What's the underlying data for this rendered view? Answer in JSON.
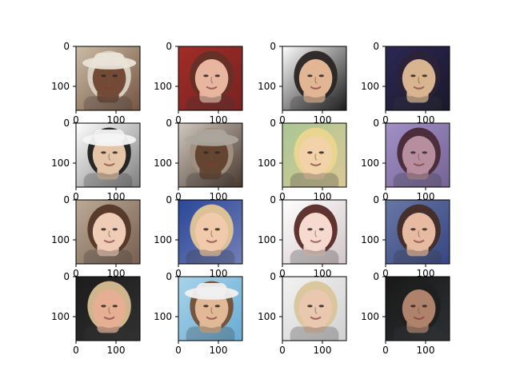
{
  "figure": {
    "rows": 4,
    "cols": 4,
    "axis_tick_labels": {
      "x": [
        "0",
        "100"
      ],
      "y": [
        "0",
        "100"
      ]
    },
    "panels": [
      {
        "skin": "#6b3f2a",
        "hair": "#d8cfc2",
        "bg1": "#c9b8a0",
        "bg2": "#6d4b36",
        "hat": true,
        "hat_color": "#e9e2d6"
      },
      {
        "skin": "#e7b199",
        "hair": "#5b2519",
        "bg1": "#9c1f1a",
        "bg2": "#6f1614",
        "hat": false
      },
      {
        "skin": "#e1b18f",
        "hair": "#1e1715",
        "bg1": "#ffffff",
        "bg2": "#0b0b0b",
        "hat": false
      },
      {
        "skin": "#d7b08a",
        "hair": "#20152b",
        "bg1": "#1f1b4a",
        "bg2": "#0c0a1e",
        "hat": false
      },
      {
        "skin": "#e4c2a2",
        "hair": "#101010",
        "bg1": "#ffffff",
        "bg2": "#777777",
        "hat": true,
        "hat_color": "#f4f4f4"
      },
      {
        "skin": "#5b3a25",
        "hair": "#9b8a78",
        "bg1": "#cfc5bb",
        "bg2": "#3d2c20",
        "hat": true,
        "hat_color": "#a7a096"
      },
      {
        "skin": "#f1d0a4",
        "hair": "#ead48a",
        "bg1": "#a4c48e",
        "bg2": "#d9c58f",
        "hat": false
      },
      {
        "skin": "#b38797",
        "hair": "#3d1b29",
        "bg1": "#9b8ac4",
        "bg2": "#6e5a8f",
        "hat": false
      },
      {
        "skin": "#efc9b1",
        "hair": "#4a2a1a",
        "bg1": "#b9a58f",
        "bg2": "#6f5545",
        "hat": false
      },
      {
        "skin": "#f0c7a5",
        "hair": "#e2c58f",
        "bg1": "#1d3c93",
        "bg2": "#6a78b2",
        "hat": false
      },
      {
        "skin": "#f7d8cc",
        "hair": "#4d1e19",
        "bg1": "#ffffff",
        "bg2": "#d0c3c6",
        "hat": false
      },
      {
        "skin": "#e6b79c",
        "hair": "#3a2119",
        "bg1": "#5e6f9e",
        "bg2": "#2b3b7c",
        "hat": false
      },
      {
        "skin": "#e5ab8e",
        "hair": "#d7b98b",
        "bg1": "#0e0e0e",
        "bg2": "#242424",
        "hat": false
      },
      {
        "skin": "#e1b591",
        "hair": "#6b4528",
        "bg1": "#a5d1e9",
        "bg2": "#5fa7d1",
        "hat": true,
        "hat_color": "#f0f0f0"
      },
      {
        "skin": "#e9c5ac",
        "hair": "#d8c294",
        "bg1": "#f2f2f2",
        "bg2": "#cfcfcf",
        "hat": false
      },
      {
        "skin": "#a97b62",
        "hair": "#121212",
        "bg1": "#0a0a0a",
        "bg2": "#202326",
        "hat": false
      }
    ]
  }
}
